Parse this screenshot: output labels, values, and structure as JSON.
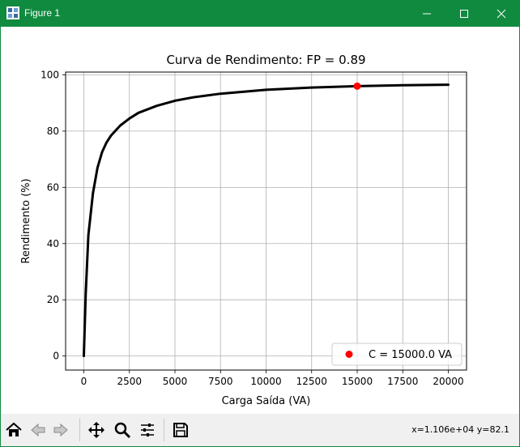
{
  "window": {
    "title": "Figure 1",
    "icons": [
      "app-icon",
      "minimize-icon",
      "maximize-icon",
      "close-icon"
    ]
  },
  "toolbar": {
    "buttons": [
      "home-icon",
      "back-arrow-icon",
      "forward-arrow-icon",
      "pan-move-icon",
      "zoom-magnifier-icon",
      "configure-subplots-icon",
      "save-floppy-icon"
    ],
    "status": "x=1.106e+04 y=82.1"
  },
  "colors": {
    "titlebar": "#108a3e",
    "line": "#000000",
    "marker": "#ff0000",
    "grid": "#b0b0b0"
  },
  "chart_data": {
    "type": "line",
    "title": "Curva de Rendimento: FP = 0.89",
    "xlabel": "Carga Saída (VA)",
    "ylabel": "Rendimento (%)",
    "xlim": [
      -1000,
      21000
    ],
    "ylim": [
      -5,
      101
    ],
    "xticks": [
      0,
      2500,
      5000,
      7500,
      10000,
      12500,
      15000,
      17500,
      20000
    ],
    "yticks": [
      0,
      20,
      40,
      60,
      80,
      100
    ],
    "grid": true,
    "series": [
      {
        "x": [
          0,
          100,
          250,
          500,
          750,
          1000,
          1250,
          1500,
          2000,
          2500,
          3000,
          4000,
          5000,
          6000,
          7500,
          10000,
          12500,
          15000,
          17500,
          20000
        ],
        "y": [
          0,
          22,
          43,
          58,
          67,
          72.5,
          76,
          78.5,
          82,
          84.5,
          86.5,
          89,
          90.8,
          92,
          93.3,
          94.7,
          95.5,
          96,
          96.3,
          96.5
        ]
      }
    ],
    "marker": {
      "x": 15000,
      "y": 96,
      "label": "C = 15000.0 VA"
    },
    "legend": {
      "entries": [
        "C = 15000.0 VA"
      ],
      "placement": "lower-right"
    }
  }
}
